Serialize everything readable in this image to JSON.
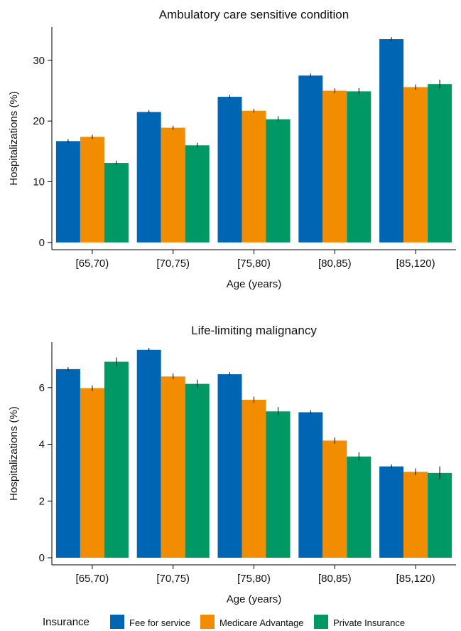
{
  "chart_data": [
    {
      "type": "bar",
      "title": "Ambulatory care sensitive condition",
      "xlabel": "Age (years)",
      "ylabel": "Hospitalizations (%)",
      "categories": [
        "[65,70)",
        "[70,75)",
        "[75,80)",
        "[80,85)",
        "[85,120)"
      ],
      "ylim": [
        -1.2,
        35.5
      ],
      "yticks": [
        0,
        10,
        20,
        30
      ],
      "series": [
        {
          "name": "Fee for service",
          "values": [
            16.7,
            21.5,
            24.0,
            27.5,
            33.5
          ],
          "error": [
            0.08,
            0.08,
            0.1,
            0.1,
            0.1
          ]
        },
        {
          "name": "Medicare Advantage",
          "values": [
            17.4,
            18.9,
            21.7,
            25.0,
            25.6
          ],
          "error": [
            0.1,
            0.1,
            0.1,
            0.15,
            0.2
          ]
        },
        {
          "name": "Private Insurance",
          "values": [
            13.1,
            16.0,
            20.3,
            24.9,
            26.1
          ],
          "error": [
            0.15,
            0.2,
            0.25,
            0.3,
            0.5
          ]
        }
      ],
      "grid": false
    },
    {
      "type": "bar",
      "title": "Life-limiting malignancy",
      "xlabel": "Age (years)",
      "ylabel": "Hospitalizations (%)",
      "categories": [
        "[65,70)",
        "[70,75)",
        "[75,80)",
        "[80,85)",
        "[85,120)"
      ],
      "ylim": [
        -0.25,
        7.6
      ],
      "yticks": [
        0,
        2,
        4,
        6
      ],
      "series": [
        {
          "name": "Fee for service",
          "values": [
            6.65,
            7.33,
            6.47,
            5.13,
            3.22
          ],
          "error": [
            0.02,
            0.02,
            0.02,
            0.02,
            0.02
          ]
        },
        {
          "name": "Medicare Advantage",
          "values": [
            5.98,
            6.39,
            5.57,
            4.13,
            3.03
          ],
          "error": [
            0.05,
            0.05,
            0.06,
            0.06,
            0.07
          ]
        },
        {
          "name": "Private Insurance",
          "values": [
            6.91,
            6.13,
            5.16,
            3.57,
            2.99
          ],
          "error": [
            0.1,
            0.1,
            0.1,
            0.1,
            0.18
          ]
        }
      ],
      "grid": false
    }
  ],
  "legend": {
    "title": "Insurance",
    "placement": "bottom",
    "items": [
      {
        "label": "Fee for service",
        "color": "#0066b3"
      },
      {
        "label": "Medicare Advantage",
        "color": "#f28c00"
      },
      {
        "label": "Private Insurance",
        "color": "#009966"
      }
    ]
  },
  "colors": [
    "#0066b3",
    "#f28c00",
    "#009966"
  ]
}
